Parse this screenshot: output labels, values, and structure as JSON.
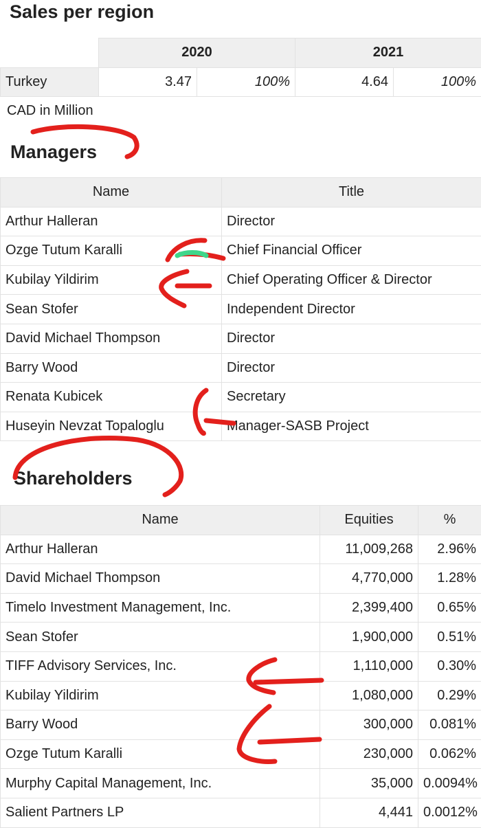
{
  "sales": {
    "title": "Sales per region",
    "header": [
      "2020",
      "2021"
    ],
    "rows": [
      [
        "Turkey",
        "3.47",
        "100%",
        "4.64",
        "100%"
      ]
    ],
    "note": "CAD in Million"
  },
  "managers": {
    "title": "Managers",
    "header": [
      "Name",
      "Title"
    ],
    "rows": [
      [
        "Arthur Halleran",
        "Director"
      ],
      [
        "Ozge Tutum Karalli",
        "Chief Financial Officer"
      ],
      [
        "Kubilay Yildirim",
        "Chief Operating Officer & Director"
      ],
      [
        "Sean Stofer",
        "Independent Director"
      ],
      [
        "David Michael Thompson",
        "Director"
      ],
      [
        "Barry Wood",
        "Director"
      ],
      [
        "Renata Kubicek",
        "Secretary"
      ],
      [
        "Huseyin Nevzat Topaloglu",
        "Manager-SASB Project"
      ]
    ]
  },
  "shareholders": {
    "title": "Shareholders",
    "header": [
      "Name",
      "Equities",
      "%"
    ],
    "rows": [
      [
        "Arthur Halleran",
        "11,009,268",
        "2.96%"
      ],
      [
        "David Michael Thompson",
        "4,770,000",
        "1.28%"
      ],
      [
        "Timelo Investment Management, Inc.",
        "2,399,400",
        "0.65%"
      ],
      [
        "Sean Stofer",
        "1,900,000",
        "0.51%"
      ],
      [
        "TIFF Advisory Services, Inc.",
        "1,110,000",
        "0.30%"
      ],
      [
        "Kubilay Yildirim",
        "1,080,000",
        "0.29%"
      ],
      [
        "Barry Wood",
        "300,000",
        "0.081%"
      ],
      [
        "Ozge Tutum Karalli",
        "230,000",
        "0.062%"
      ],
      [
        "Murphy Capital Management, Inc.",
        "35,000",
        "0.0094%"
      ],
      [
        "Salient Partners LP",
        "4,441",
        "0.0012%"
      ]
    ]
  }
}
